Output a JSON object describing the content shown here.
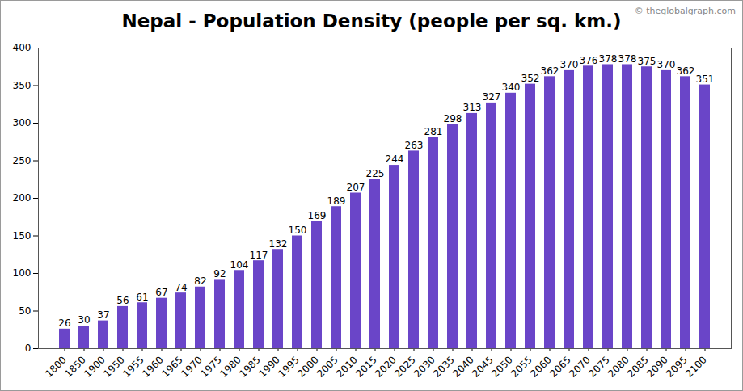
{
  "chart_data": {
    "type": "bar",
    "title": "Nepal - Population Density (people per sq. km.)",
    "annotations": [
      "© theglobalgraph.com"
    ],
    "categories": [
      "1800",
      "1850",
      "1900",
      "1950",
      "1955",
      "1960",
      "1965",
      "1970",
      "1975",
      "1980",
      "1985",
      "1990",
      "1995",
      "2000",
      "2005",
      "2010",
      "2015",
      "2020",
      "2025",
      "2030",
      "2035",
      "2040",
      "2045",
      "2050",
      "2055",
      "2060",
      "2065",
      "2070",
      "2075",
      "2080",
      "2085",
      "2090",
      "2095",
      "2100"
    ],
    "values": [
      26,
      30,
      37,
      56,
      61,
      67,
      74,
      82,
      92,
      104,
      117,
      132,
      150,
      169,
      189,
      207,
      225,
      244,
      263,
      281,
      298,
      313,
      327,
      340,
      352,
      362,
      370,
      376,
      378,
      378,
      375,
      370,
      362,
      351
    ],
    "color": "#6a45c8",
    "ylim": [
      0,
      400
    ],
    "yticks": [
      0,
      50,
      100,
      150,
      200,
      250,
      300,
      350,
      400
    ],
    "grid": false,
    "data_labels": true
  }
}
